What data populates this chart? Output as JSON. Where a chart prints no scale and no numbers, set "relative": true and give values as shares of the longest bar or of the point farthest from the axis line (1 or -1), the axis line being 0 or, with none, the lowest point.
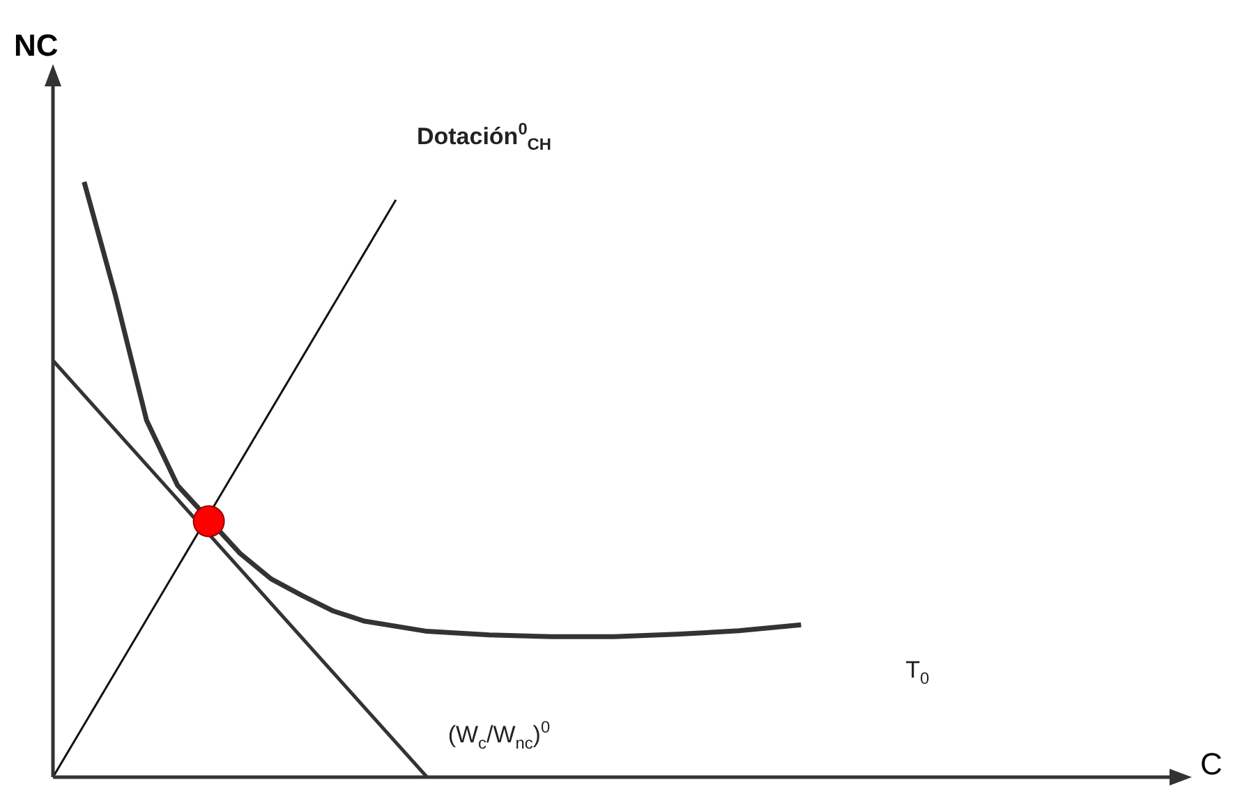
{
  "chart_data": {
    "type": "line",
    "relative": true,
    "xlabel": "C",
    "ylabel": "NC",
    "legend": false,
    "marker": "none",
    "categories": [
      null,
      null,
      null,
      null,
      null,
      null,
      null,
      null,
      null,
      null,
      null,
      null,
      null,
      null,
      null,
      null,
      null,
      null,
      null,
      null,
      null,
      null,
      null,
      null,
      null,
      null,
      null,
      null,
      null,
      null,
      null,
      null,
      null,
      null,
      null,
      null,
      null
    ],
    "series": [
      {
        "name": "T$_{0}$",
        "color": "#333333",
        "values": [
          null,
          1.0,
          0.81,
          0.6,
          0.49,
          null,
          0.376,
          0.333,
          0.305,
          0.279,
          0.262,
          null,
          0.245,
          null,
          0.239,
          null,
          0.236,
          null,
          0.236,
          null,
          0.24,
          null,
          0.246,
          null,
          0.256,
          null,
          null,
          null,
          null,
          null,
          null,
          null,
          null,
          null,
          null,
          null,
          null
        ]
      },
      {
        "name": "(W$_{c}$/W$_{nc}$)$^{0}$",
        "color": "#333333",
        "values": [
          0.7,
          null,
          null,
          null,
          null,
          null,
          null,
          null,
          null,
          null,
          null,
          null,
          0,
          null,
          null,
          null,
          null,
          null,
          null,
          null,
          null,
          null,
          null,
          null,
          null,
          null,
          null,
          null,
          null,
          null,
          null,
          null,
          null,
          null,
          null,
          null,
          null
        ]
      },
      {
        "name": "Dotación$^{0}$$_{CH}$",
        "color": "#111111",
        "values": [
          0,
          null,
          null,
          null,
          null,
          null,
          null,
          null,
          null,
          null,
          null,
          0.97,
          null,
          null,
          null,
          null,
          null,
          null,
          null,
          null,
          null,
          null,
          null,
          null,
          null,
          null,
          null,
          null,
          null,
          null,
          null,
          null,
          null,
          null,
          null,
          null,
          null
        ]
      },
      {
        "marker": "circle",
        "color": "#ff0000",
        "values": [
          null,
          null,
          null,
          null,
          null,
          0.43,
          null,
          null,
          null,
          null,
          null,
          null,
          null,
          null,
          null,
          null,
          null,
          null,
          null,
          null,
          null,
          null,
          null,
          null,
          null,
          null,
          null,
          null,
          null,
          null,
          null,
          null,
          null,
          null,
          null,
          null,
          null
        ]
      }
    ]
  }
}
